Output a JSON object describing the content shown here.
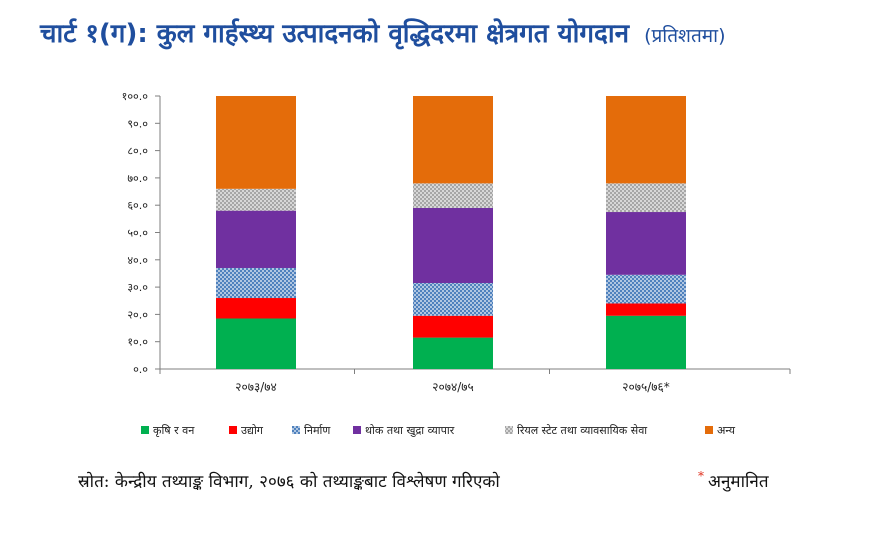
{
  "title": "चार्ट १(ग): कुल गार्हस्थ्य उत्पादनको वृद्धिदरमा क्षेत्रगत योगदान",
  "subtitle": "(प्रतिशतमा)",
  "source_note": "स्रोत: केन्द्रीय तथ्याङ्क विभाग, २०७६ को तथ्याङ्कबाट विश्लेषण गरिएको",
  "estimate_mark": "*",
  "estimate_note": "अनुमानित",
  "chart_data": {
    "type": "bar",
    "stacked": true,
    "categories": [
      "२०७३/७४",
      "२०७४/७५",
      "२०७५/७६*"
    ],
    "ylim": [
      0,
      100
    ],
    "yticks": [
      0,
      10,
      20,
      30,
      40,
      50,
      60,
      70,
      80,
      90,
      100
    ],
    "ytick_labels": [
      "०.०",
      "१०.०",
      "२०.०",
      "३०.०",
      "४०.०",
      "५०.०",
      "६०.०",
      "७०.०",
      "८०.०",
      "९०.०",
      "१००.०"
    ],
    "legend_position": "bottom",
    "series": [
      {
        "name": "कृषि र वन",
        "color": "#00b050",
        "pattern": "solid",
        "values": [
          18.5,
          11.5,
          19.5
        ]
      },
      {
        "name": "उद्योग",
        "color": "#ff0000",
        "pattern": "solid",
        "values": [
          7.5,
          8.0,
          4.5
        ]
      },
      {
        "name": "निर्माण",
        "color": "#4f81bd",
        "pattern": "checker",
        "values": [
          11.0,
          12.0,
          10.5
        ]
      },
      {
        "name": "थोक तथा खुद्रा व्यापार",
        "color": "#7030a0",
        "pattern": "solid",
        "values": [
          21.0,
          27.5,
          23.0
        ]
      },
      {
        "name": "रियल स्टेट तथा व्यावसायिक सेवा",
        "color": "#a6a6a6",
        "pattern": "checker",
        "values": [
          8.0,
          9.0,
          10.5
        ]
      },
      {
        "name": "अन्य",
        "color": "#e46c0a",
        "pattern": "solid",
        "values": [
          34.0,
          32.0,
          32.0
        ]
      }
    ]
  }
}
